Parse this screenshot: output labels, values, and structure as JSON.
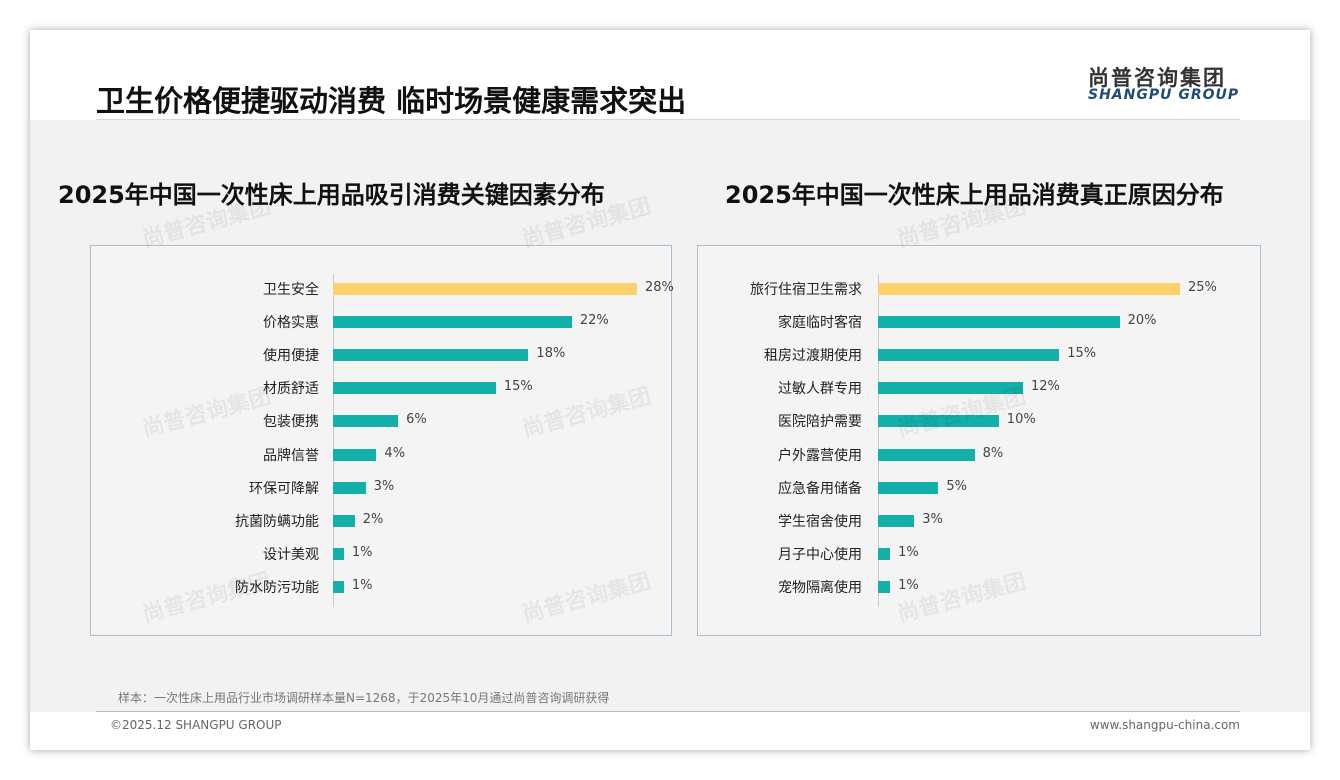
{
  "header": {
    "title": "卫生价格便捷驱动消费 临时场景健康需求突出",
    "logo_cn": "尚普咨询集团",
    "logo_en": "SHANGPU GROUP"
  },
  "chart_data": [
    {
      "type": "bar",
      "orientation": "horizontal",
      "title": "2025年中国一次性床上用品吸引消费关键因素分布",
      "categories": [
        "卫生安全",
        "价格实惠",
        "使用便捷",
        "材质舒适",
        "包装便携",
        "品牌信誉",
        "环保可降解",
        "抗菌防螨功能",
        "设计美观",
        "防水防污功能"
      ],
      "values": [
        28,
        22,
        18,
        15,
        6,
        4,
        3,
        2,
        1,
        1
      ],
      "labels": [
        "28%",
        "22%",
        "18%",
        "15%",
        "6%",
        "4%",
        "3%",
        "2%",
        "1%",
        "1%"
      ],
      "unit": "%",
      "highlight_color": "#fcd06a",
      "bar_color": "#12b0a8"
    },
    {
      "type": "bar",
      "orientation": "horizontal",
      "title": "2025年中国一次性床上用品消费真正原因分布",
      "categories": [
        "旅行住宿卫生需求",
        "家庭临时客宿",
        "租房过渡期使用",
        "过敏人群专用",
        "医院陪护需要",
        "户外露营使用",
        "应急备用储备",
        "学生宿舍使用",
        "月子中心使用",
        "宠物隔离使用"
      ],
      "values": [
        25,
        20,
        15,
        12,
        10,
        8,
        5,
        3,
        1,
        1
      ],
      "labels": [
        "25%",
        "20%",
        "15%",
        "12%",
        "10%",
        "8%",
        "5%",
        "3%",
        "1%",
        "1%"
      ],
      "unit": "%",
      "highlight_color": "#fcd06a",
      "bar_color": "#12b0a8"
    }
  ],
  "footer": {
    "note": "样本：一次性床上用品行业市场调研样本量N=1268，于2025年10月通过尚普咨询调研获得",
    "copyright": "©2025.12 SHANGPU GROUP",
    "url": "www.shangpu-china.com"
  }
}
